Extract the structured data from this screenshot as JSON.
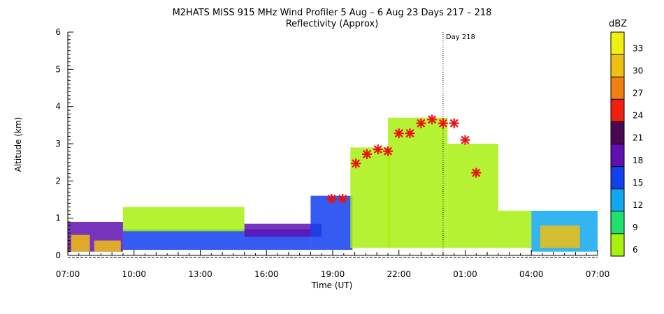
{
  "chart_data": {
    "type": "heatmap",
    "title": "M2HATS MISS 915 MHz Wind Profiler   5 Aug –  6 Aug 23 Days 217 – 218",
    "subtitle": "Reflectivity (Approx)",
    "xlabel": "Time (UT)",
    "ylabel": "Altitude (km)",
    "xlim_hours": [
      0,
      24
    ],
    "ylim": [
      0,
      6
    ],
    "x_ticks": [
      {
        "h": 0,
        "label": "07:00"
      },
      {
        "h": 3,
        "label": "10:00"
      },
      {
        "h": 6,
        "label": "13:00"
      },
      {
        "h": 9,
        "label": "16:00"
      },
      {
        "h": 12,
        "label": "19:00"
      },
      {
        "h": 15,
        "label": "22:00"
      },
      {
        "h": 18,
        "label": "01:00"
      },
      {
        "h": 21,
        "label": "04:00"
      },
      {
        "h": 24,
        "label": "07:00"
      }
    ],
    "y_ticks": [
      "0",
      "1",
      "2",
      "3",
      "4",
      "5",
      "6"
    ],
    "day_marker": {
      "h": 17,
      "label": "Day 218"
    },
    "colorbar": {
      "title": "dBZ",
      "levels": [
        "6",
        "9",
        "12",
        "15",
        "18",
        "21",
        "24",
        "27",
        "30",
        "33"
      ],
      "colors": [
        "#a8f010",
        "#20e070",
        "#10a8f0",
        "#1040f0",
        "#6010b0",
        "#4a0850",
        "#f02010",
        "#f08010",
        "#f0c010",
        "#f0f010"
      ]
    },
    "boundary_layer_markers": [
      {
        "h": 11.95,
        "alt": 1.52
      },
      {
        "h": 12.45,
        "alt": 1.52
      },
      {
        "h": 13.05,
        "alt": 2.47
      },
      {
        "h": 13.55,
        "alt": 2.72
      },
      {
        "h": 14.05,
        "alt": 2.85
      },
      {
        "h": 14.5,
        "alt": 2.8
      },
      {
        "h": 15.0,
        "alt": 3.28
      },
      {
        "h": 15.5,
        "alt": 3.28
      },
      {
        "h": 16.0,
        "alt": 3.55
      },
      {
        "h": 16.5,
        "alt": 3.65
      },
      {
        "h": 17.0,
        "alt": 3.55
      },
      {
        "h": 17.5,
        "alt": 3.55
      },
      {
        "h": 18.0,
        "alt": 3.1
      },
      {
        "h": 18.5,
        "alt": 2.22
      }
    ],
    "reflectivity_regions": [
      {
        "h0": 0.0,
        "h1": 2.5,
        "alt0": 0.1,
        "alt1": 0.9,
        "dbz": 18
      },
      {
        "h0": 0.15,
        "h1": 1.0,
        "alt0": 0.1,
        "alt1": 0.55,
        "dbz": 31
      },
      {
        "h0": 1.2,
        "h1": 2.4,
        "alt0": 0.1,
        "alt1": 0.4,
        "dbz": 30
      },
      {
        "h0": 2.5,
        "h1": 11.0,
        "alt0": 0.15,
        "alt1": 0.7,
        "dbz": 15
      },
      {
        "h0": 2.5,
        "h1": 8.0,
        "alt0": 0.65,
        "alt1": 1.3,
        "dbz": 7
      },
      {
        "h0": 8.0,
        "h1": 11.5,
        "alt0": 0.5,
        "alt1": 0.85,
        "dbz": 20
      },
      {
        "h0": 11.0,
        "h1": 12.9,
        "alt0": 0.15,
        "alt1": 1.6,
        "dbz": 16
      },
      {
        "h0": 12.8,
        "h1": 14.6,
        "alt0": 0.2,
        "alt1": 2.9,
        "dbz": 8
      },
      {
        "h0": 14.5,
        "h1": 17.2,
        "alt0": 0.2,
        "alt1": 3.7,
        "dbz": 7
      },
      {
        "h0": 17.2,
        "h1": 19.5,
        "alt0": 0.2,
        "alt1": 3.0,
        "dbz": 6
      },
      {
        "h0": 19.5,
        "h1": 21.0,
        "alt0": 0.2,
        "alt1": 1.2,
        "dbz": 6
      },
      {
        "h0": 21.0,
        "h1": 24.0,
        "alt0": 0.1,
        "alt1": 1.2,
        "dbz": 12
      },
      {
        "h0": 21.4,
        "h1": 23.2,
        "alt0": 0.2,
        "alt1": 0.8,
        "dbz": 31
      }
    ]
  }
}
